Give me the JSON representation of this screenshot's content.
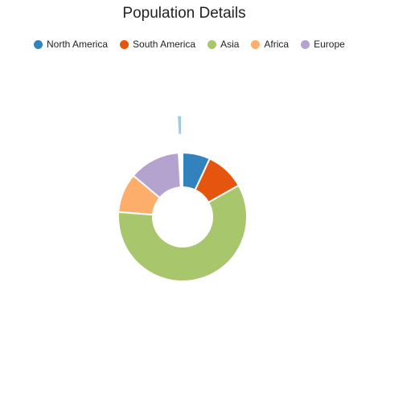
{
  "chart_data": {
    "type": "pie",
    "variant": "doughnut",
    "title": "Population Details",
    "legend_position": "top",
    "series": [
      {
        "name": "North America",
        "value": 7,
        "color": "#3182bd"
      },
      {
        "name": "South America",
        "value": 10,
        "color": "#e6550d"
      },
      {
        "name": "Asia",
        "value": 60,
        "color": "#a8c66c"
      },
      {
        "name": "Africa",
        "value": 10,
        "color": "#fdae6b"
      },
      {
        "name": "Europe",
        "value": 13,
        "color": "#b5a3cf"
      }
    ],
    "exploded_series": {
      "value": 1,
      "color": "#9ecae1"
    }
  }
}
